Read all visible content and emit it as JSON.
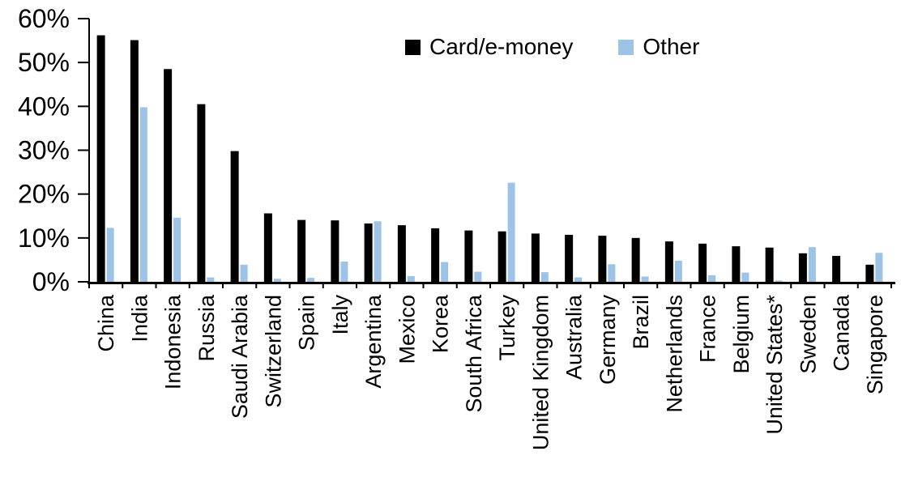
{
  "chart_data": {
    "type": "bar",
    "title": "",
    "xlabel": "",
    "ylabel": "",
    "categories": [
      "China",
      "India",
      "Indonesia",
      "Russia",
      "Saudi Arabia",
      "Switzerland",
      "Spain",
      "Italy",
      "Argentina",
      "Mexico",
      "Korea",
      "South Africa",
      "Turkey",
      "United Kingdom",
      "Australia",
      "Germany",
      "Brazil",
      "Netherlands",
      "France",
      "Belgium",
      "United States*",
      "Sweden",
      "Canada",
      "Singapore"
    ],
    "series": [
      {
        "name": "Card/e-money",
        "color": "#000000",
        "values": [
          56.2,
          55.1,
          48.5,
          40.5,
          29.8,
          15.6,
          14.1,
          14.0,
          13.3,
          12.9,
          12.2,
          11.7,
          11.5,
          11.0,
          10.7,
          10.5,
          10.0,
          9.2,
          8.7,
          8.1,
          7.8,
          6.5,
          5.9,
          3.9
        ]
      },
      {
        "name": "Other",
        "color": "#9DC3E6",
        "values": [
          12.3,
          39.8,
          14.6,
          1.0,
          3.9,
          0.7,
          0.9,
          4.6,
          13.8,
          1.3,
          4.5,
          2.3,
          22.6,
          2.2,
          1.0,
          4.0,
          1.2,
          4.8,
          1.5,
          2.1,
          0.3,
          7.9,
          0,
          6.6
        ]
      }
    ],
    "ytick_values": [
      0,
      10,
      20,
      30,
      40,
      50,
      60
    ],
    "ytick_labels": [
      "0%",
      "10%",
      "20%",
      "30%",
      "40%",
      "50%",
      "60%"
    ],
    "ylim": [
      0,
      60
    ],
    "grid": false,
    "legend_position": "top-center",
    "axis_color": "#000000"
  }
}
